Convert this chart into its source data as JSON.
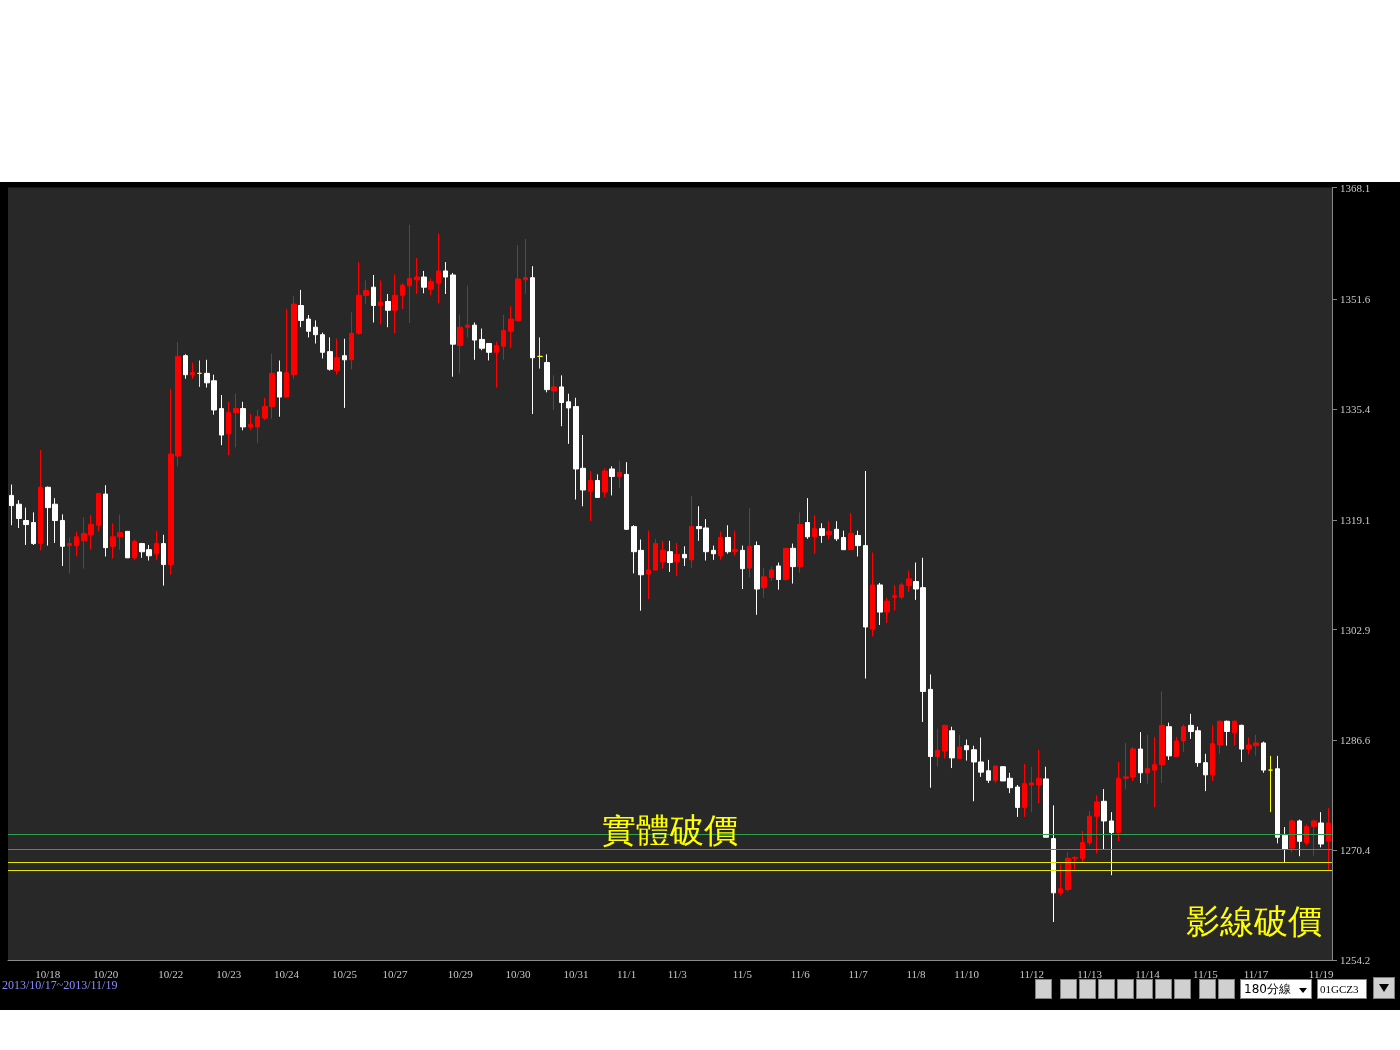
{
  "chart_data": {
    "type": "candlestick",
    "categories": [
      null,
      null,
      null,
      null,
      null,
      "10/18",
      null,
      null,
      null,
      null,
      null,
      null,
      null,
      "10/20",
      null,
      null,
      null,
      null,
      null,
      null,
      null,
      null,
      "10/22",
      null,
      null,
      null,
      null,
      null,
      null,
      null,
      "10/23",
      null,
      null,
      null,
      null,
      null,
      null,
      null,
      "10/24",
      null,
      null,
      null,
      null,
      null,
      null,
      null,
      "10/25",
      null,
      null,
      null,
      null,
      null,
      null,
      "10/27",
      null,
      null,
      null,
      null,
      null,
      null,
      null,
      null,
      "10/29",
      null,
      null,
      null,
      null,
      null,
      null,
      null,
      "10/30",
      null,
      null,
      null,
      null,
      null,
      null,
      null,
      "10/31",
      null,
      null,
      null,
      null,
      null,
      null,
      "11/1",
      null,
      null,
      null,
      null,
      null,
      null,
      "11/3",
      null,
      null,
      null,
      null,
      null,
      null,
      null,
      null,
      "11/5",
      null,
      null,
      null,
      null,
      null,
      null,
      null,
      "11/6",
      null,
      null,
      null,
      null,
      null,
      null,
      null,
      "11/7",
      null,
      null,
      null,
      null,
      null,
      null,
      null,
      "11/8",
      null,
      null,
      null,
      null,
      null,
      null,
      "11/10",
      null,
      null,
      null,
      null,
      null,
      null,
      null,
      null,
      "11/12",
      null,
      null,
      null,
      null,
      null,
      null,
      null,
      "11/13",
      null,
      null,
      null,
      null,
      null,
      null,
      null,
      "11/14",
      null,
      null,
      null,
      null,
      null,
      null,
      null,
      "11/15",
      null,
      null,
      null,
      null,
      null,
      null,
      "11/17",
      null,
      null,
      null,
      null,
      null,
      null,
      null,
      null,
      "11/19",
      null
    ],
    "ohlc": [
      [
        1322.7,
        1324.3,
        1318.3,
        1321.2
      ],
      [
        1321.4,
        1322.0,
        1317.9,
        1319.3
      ],
      [
        1319.0,
        1320.9,
        1315.4,
        1318.4
      ],
      [
        1318.7,
        1320.2,
        1315.4,
        1315.6
      ],
      [
        1315.6,
        1329.4,
        1314.6,
        1323.9
      ],
      [
        1323.9,
        1324.0,
        1315.3,
        1320.9
      ],
      [
        1321.4,
        1322.3,
        1315.7,
        1319.0
      ],
      [
        1319.0,
        1319.9,
        1312.3,
        1315.2
      ],
      [
        1315.3,
        1316.5,
        1311.2,
        1315.6
      ],
      [
        1315.3,
        1317.4,
        1313.7,
        1316.6
      ],
      [
        1316.0,
        1319.5,
        1311.9,
        1317.1
      ],
      [
        1316.9,
        1319.8,
        1314.7,
        1318.4
      ],
      [
        1318.3,
        1323.0,
        1317.4,
        1323.0
      ],
      [
        1322.9,
        1324.2,
        1313.7,
        1315.0
      ],
      [
        1315.2,
        1318.6,
        1313.4,
        1316.6
      ],
      [
        1316.6,
        1319.9,
        1314.7,
        1317.2
      ],
      [
        1317.4,
        1317.4,
        1313.5,
        1313.5
      ],
      [
        1313.5,
        1316.2,
        1313.2,
        1315.9
      ],
      [
        1315.6,
        1315.7,
        1313.5,
        1314.4
      ],
      [
        1314.7,
        1315.4,
        1313.1,
        1313.8
      ],
      [
        1314.1,
        1317.5,
        1313.2,
        1315.6
      ],
      [
        1315.6,
        1316.9,
        1309.4,
        1312.5
      ],
      [
        1312.5,
        1338.4,
        1311.0,
        1328.8
      ],
      [
        1328.5,
        1345.3,
        1327.0,
        1343.2
      ],
      [
        1343.3,
        1343.5,
        1339.9,
        1340.5
      ],
      [
        1340.5,
        1342.3,
        1339.9,
        1340.8
      ],
      [
        1340.7,
        1342.6,
        1338.7,
        1340.7
      ],
      [
        1340.7,
        1342.7,
        1338.6,
        1339.3
      ],
      [
        1339.6,
        1340.5,
        1334.6,
        1335.3
      ],
      [
        1335.5,
        1337.5,
        1330.1,
        1331.6
      ],
      [
        1331.8,
        1336.5,
        1328.6,
        1334.9
      ],
      [
        1334.9,
        1337.7,
        1329.8,
        1335.5
      ],
      [
        1335.5,
        1336.5,
        1332.3,
        1332.8
      ],
      [
        1332.8,
        1334.7,
        1332.3,
        1333.2
      ],
      [
        1332.8,
        1335.3,
        1330.4,
        1334.3
      ],
      [
        1334.1,
        1337.1,
        1333.8,
        1335.8
      ],
      [
        1335.8,
        1343.6,
        1334.0,
        1340.7
      ],
      [
        1340.9,
        1342.6,
        1334.3,
        1337.2
      ],
      [
        1337.2,
        1350.2,
        1337.2,
        1340.8
      ],
      [
        1340.5,
        1352.1,
        1339.9,
        1350.9
      ],
      [
        1350.7,
        1353.0,
        1347.5,
        1348.5
      ],
      [
        1348.7,
        1349.3,
        1346.0,
        1346.9
      ],
      [
        1347.5,
        1348.5,
        1345.1,
        1346.4
      ],
      [
        1346.4,
        1346.7,
        1342.9,
        1343.8
      ],
      [
        1343.9,
        1346.0,
        1341.1,
        1341.3
      ],
      [
        1341.1,
        1345.8,
        1340.5,
        1343.0
      ],
      [
        1343.3,
        1345.8,
        1335.6,
        1342.7
      ],
      [
        1342.7,
        1349.7,
        1341.3,
        1346.6
      ],
      [
        1346.6,
        1357.1,
        1346.4,
        1352.2
      ],
      [
        1352.2,
        1354.4,
        1350.9,
        1352.9
      ],
      [
        1353.4,
        1355.2,
        1348.2,
        1350.7
      ],
      [
        1350.7,
        1354.4,
        1347.9,
        1351.2
      ],
      [
        1351.3,
        1352.4,
        1347.5,
        1350.0
      ],
      [
        1350.0,
        1355.3,
        1346.6,
        1352.2
      ],
      [
        1352.2,
        1354.0,
        1350.2,
        1353.7
      ],
      [
        1353.6,
        1362.6,
        1348.1,
        1354.7
      ],
      [
        1354.5,
        1357.7,
        1352.4,
        1354.9
      ],
      [
        1354.9,
        1355.8,
        1352.5,
        1353.4
      ],
      [
        1353.1,
        1354.7,
        1352.2,
        1354.2
      ],
      [
        1354.0,
        1361.3,
        1351.0,
        1355.8
      ],
      [
        1355.8,
        1357.1,
        1352.4,
        1354.9
      ],
      [
        1355.2,
        1355.5,
        1340.2,
        1345.0
      ],
      [
        1344.8,
        1349.4,
        1340.7,
        1347.5
      ],
      [
        1347.5,
        1353.6,
        1346.0,
        1347.8
      ],
      [
        1347.8,
        1348.2,
        1342.7,
        1345.6
      ],
      [
        1345.7,
        1347.3,
        1344.1,
        1344.4
      ],
      [
        1345.1,
        1345.1,
        1342.6,
        1343.8
      ],
      [
        1343.8,
        1345.4,
        1338.6,
        1344.8
      ],
      [
        1344.7,
        1349.3,
        1342.7,
        1347.0
      ],
      [
        1346.9,
        1350.6,
        1344.4,
        1348.7
      ],
      [
        1348.5,
        1359.6,
        1348.4,
        1354.6
      ],
      [
        1354.5,
        1360.5,
        1352.4,
        1354.8
      ],
      [
        1354.8,
        1356.5,
        1334.7,
        1343.0
      ],
      [
        1343.2,
        1346.0,
        1341.4,
        1343.2
      ],
      [
        1342.3,
        1343.5,
        1337.9,
        1338.3
      ],
      [
        1338.1,
        1340.4,
        1335.3,
        1338.7
      ],
      [
        1338.7,
        1340.4,
        1332.9,
        1336.4
      ],
      [
        1336.5,
        1337.7,
        1330.3,
        1335.6
      ],
      [
        1335.8,
        1337.1,
        1322.1,
        1326.6
      ],
      [
        1326.7,
        1331.6,
        1321.1,
        1323.5
      ],
      [
        1323.3,
        1326.3,
        1318.9,
        1324.9
      ],
      [
        1324.9,
        1325.8,
        1322.4,
        1322.4
      ],
      [
        1323.2,
        1326.7,
        1322.4,
        1326.3
      ],
      [
        1326.6,
        1327.0,
        1322.7,
        1325.5
      ],
      [
        1325.5,
        1327.8,
        1323.8,
        1326.1
      ],
      [
        1325.8,
        1327.6,
        1317.6,
        1317.7
      ],
      [
        1318.1,
        1318.3,
        1311.2,
        1314.4
      ],
      [
        1314.6,
        1316.2,
        1305.7,
        1311.0
      ],
      [
        1311.1,
        1317.5,
        1307.4,
        1311.7
      ],
      [
        1311.7,
        1316.3,
        1311.6,
        1315.6
      ],
      [
        1312.9,
        1316.0,
        1311.9,
        1314.6
      ],
      [
        1314.4,
        1316.0,
        1311.4,
        1312.8
      ],
      [
        1312.9,
        1315.7,
        1310.8,
        1314.0
      ],
      [
        1314.0,
        1315.2,
        1312.3,
        1313.5
      ],
      [
        1313.2,
        1322.6,
        1312.0,
        1318.1
      ],
      [
        1318.1,
        1321.1,
        1316.0,
        1317.8
      ],
      [
        1317.9,
        1319.2,
        1313.1,
        1314.4
      ],
      [
        1314.6,
        1315.3,
        1313.2,
        1314.1
      ],
      [
        1313.8,
        1317.4,
        1313.2,
        1316.5
      ],
      [
        1316.5,
        1318.3,
        1314.1,
        1314.4
      ],
      [
        1314.4,
        1317.5,
        1313.8,
        1314.7
      ],
      [
        1314.6,
        1315.3,
        1308.9,
        1311.9
      ],
      [
        1312.0,
        1320.8,
        1310.6,
        1315.2
      ],
      [
        1315.3,
        1315.9,
        1305.1,
        1308.9
      ],
      [
        1309.1,
        1312.0,
        1307.6,
        1310.7
      ],
      [
        1310.6,
        1312.2,
        1310.1,
        1311.7
      ],
      [
        1312.3,
        1312.8,
        1308.8,
        1310.3
      ],
      [
        1310.3,
        1314.9,
        1310.1,
        1314.9
      ],
      [
        1314.9,
        1315.6,
        1309.7,
        1312.2
      ],
      [
        1312.2,
        1320.2,
        1311.3,
        1318.4
      ],
      [
        1318.7,
        1322.3,
        1316.3,
        1316.6
      ],
      [
        1316.6,
        1319.8,
        1314.1,
        1317.8
      ],
      [
        1317.8,
        1318.6,
        1315.7,
        1316.8
      ],
      [
        1316.9,
        1318.9,
        1316.2,
        1317.4
      ],
      [
        1317.7,
        1318.9,
        1316.0,
        1316.3
      ],
      [
        1316.5,
        1317.5,
        1314.7,
        1314.7
      ],
      [
        1314.7,
        1320.1,
        1314.7,
        1317.1
      ],
      [
        1316.8,
        1317.5,
        1313.7,
        1315.3
      ],
      [
        1315.3,
        1326.3,
        1295.7,
        1303.3
      ],
      [
        1303.0,
        1314.3,
        1301.9,
        1309.5
      ],
      [
        1309.5,
        1309.8,
        1303.6,
        1305.5
      ],
      [
        1305.5,
        1307.6,
        1303.9,
        1307.1
      ],
      [
        1307.7,
        1309.5,
        1305.7,
        1307.9
      ],
      [
        1307.7,
        1309.8,
        1307.4,
        1309.5
      ],
      [
        1309.4,
        1311.6,
        1308.5,
        1310.4
      ],
      [
        1310.0,
        1312.8,
        1307.3,
        1308.9
      ],
      [
        1309.1,
        1313.5,
        1289.3,
        1293.8
      ],
      [
        1294.1,
        1296.3,
        1279.6,
        1284.2
      ],
      [
        1284.2,
        1288.3,
        1282.7,
        1285.1
      ],
      [
        1285.0,
        1288.8,
        1283.9,
        1288.8
      ],
      [
        1288.0,
        1288.6,
        1282.5,
        1284.0
      ],
      [
        1283.9,
        1287.4,
        1283.9,
        1285.6
      ],
      [
        1285.8,
        1286.7,
        1283.6,
        1285.2
      ],
      [
        1285.2,
        1285.8,
        1277.6,
        1283.4
      ],
      [
        1283.4,
        1287.0,
        1281.2,
        1281.9
      ],
      [
        1282.1,
        1283.7,
        1280.3,
        1280.7
      ],
      [
        1280.7,
        1282.8,
        1280.3,
        1282.8
      ],
      [
        1282.7,
        1282.8,
        1280.6,
        1280.6
      ],
      [
        1281.0,
        1281.8,
        1278.8,
        1279.6
      ],
      [
        1279.7,
        1280.0,
        1275.3,
        1276.7
      ],
      [
        1276.7,
        1283.1,
        1275.3,
        1280.2
      ],
      [
        1280.0,
        1282.7,
        1276.0,
        1280.3
      ],
      [
        1280.0,
        1285.2,
        1277.3,
        1281.0
      ],
      [
        1280.9,
        1282.7,
        1272.3,
        1272.3
      ],
      [
        1272.1,
        1277.0,
        1259.8,
        1264.1
      ],
      [
        1264.1,
        1268.3,
        1263.7,
        1264.7
      ],
      [
        1264.6,
        1270.1,
        1264.3,
        1269.2
      ],
      [
        1269.2,
        1269.5,
        1267.5,
        1269.3
      ],
      [
        1269.2,
        1273.2,
        1268.6,
        1271.5
      ],
      [
        1271.5,
        1276.2,
        1271.1,
        1275.4
      ],
      [
        1275.4,
        1278.5,
        1269.9,
        1277.5
      ],
      [
        1277.6,
        1279.4,
        1270.5,
        1274.7
      ],
      [
        1274.7,
        1276.0,
        1266.7,
        1273.0
      ],
      [
        1273.0,
        1283.4,
        1271.7,
        1281.0
      ],
      [
        1281.0,
        1286.2,
        1279.4,
        1281.2
      ],
      [
        1281.2,
        1285.6,
        1280.6,
        1285.3
      ],
      [
        1285.3,
        1287.8,
        1280.3,
        1281.8
      ],
      [
        1281.8,
        1287.4,
        1280.2,
        1282.4
      ],
      [
        1282.2,
        1287.1,
        1276.7,
        1283.0
      ],
      [
        1283.0,
        1293.8,
        1280.3,
        1288.8
      ],
      [
        1288.6,
        1289.2,
        1283.7,
        1284.3
      ],
      [
        1284.2,
        1287.1,
        1284.2,
        1286.5
      ],
      [
        1286.5,
        1288.9,
        1284.9,
        1288.6
      ],
      [
        1288.8,
        1290.5,
        1286.8,
        1287.9
      ],
      [
        1288.0,
        1288.6,
        1282.7,
        1283.3
      ],
      [
        1283.3,
        1284.6,
        1279.1,
        1281.5
      ],
      [
        1281.5,
        1288.8,
        1280.6,
        1286.1
      ],
      [
        1285.9,
        1289.5,
        1284.6,
        1289.4
      ],
      [
        1289.4,
        1289.5,
        1285.8,
        1287.9
      ],
      [
        1287.7,
        1289.5,
        1285.8,
        1289.4
      ],
      [
        1288.8,
        1288.9,
        1283.4,
        1285.3
      ],
      [
        1285.3,
        1287.0,
        1284.5,
        1285.9
      ],
      [
        1285.8,
        1287.4,
        1284.3,
        1286.2
      ],
      [
        1286.2,
        1286.4,
        1281.8,
        1282.2
      ],
      [
        1282.2,
        1284.3,
        1276.0,
        1282.2
      ],
      [
        1282.4,
        1284.3,
        1271.4,
        1272.3
      ],
      [
        1272.6,
        1273.8,
        1268.6,
        1270.5
      ],
      [
        1270.7,
        1274.9,
        1270.1,
        1274.7
      ],
      [
        1274.7,
        1274.9,
        1269.5,
        1271.7
      ],
      [
        1271.5,
        1274.2,
        1271.1,
        1273.9
      ],
      [
        1273.9,
        1274.9,
        1269.5,
        1274.7
      ],
      [
        1274.4,
        1276.0,
        1270.8,
        1271.3
      ],
      [
        1271.7,
        1276.6,
        1267.4,
        1274.4
      ]
    ],
    "colors": [
      "#ffffff",
      "#ffffff",
      "#ffffff",
      "#ffffff",
      "#ff0000",
      "#ffffff",
      "#ffffff",
      "#ffffff",
      "#ff0000",
      "#ff0000",
      "#ff0000",
      "#ff0000",
      "#ff0000",
      "#ffffff",
      "#ff0000",
      "#ff0000",
      "#ffffff",
      "#ff0000",
      "#ffffff",
      "#ffffff",
      "#ff0000",
      "#ffffff",
      "#ff0000",
      "#ff0000",
      "#ffffff",
      "#ff0000",
      "#ffff00",
      "#ffffff",
      "#ffffff",
      "#ffffff",
      "#ff0000",
      "#ff0000",
      "#ffffff",
      "#ff0000",
      "#ff0000",
      "#ff0000",
      "#ff0000",
      "#ffffff",
      "#ff0000",
      "#ff0000",
      "#ffffff",
      "#ffffff",
      "#ffffff",
      "#ffffff",
      "#ffffff",
      "#ff0000",
      "#ffffff",
      "#ff0000",
      "#ff0000",
      "#ff0000",
      "#ffffff",
      "#ff0000",
      "#ffffff",
      "#ff0000",
      "#ff0000",
      "#ff0000",
      "#ff0000",
      "#ffffff",
      "#ff0000",
      "#ff0000",
      "#ffffff",
      "#ffffff",
      "#ff0000",
      "#ff0000",
      "#ffffff",
      "#ffffff",
      "#ffffff",
      "#ff0000",
      "#ff0000",
      "#ff0000",
      "#ff0000",
      "#ff0000",
      "#ffffff",
      "#ffff00",
      "#ffffff",
      "#ff0000",
      "#ffffff",
      "#ffffff",
      "#ffffff",
      "#ffffff",
      "#ff0000",
      "#ffffff",
      "#ff0000",
      "#ffffff",
      "#ff0000",
      "#ffffff",
      "#ffffff",
      "#ffffff",
      "#ff0000",
      "#ff0000",
      "#ff0000",
      "#ffffff",
      "#ff0000",
      "#ffffff",
      "#ff0000",
      "#ffffff",
      "#ffffff",
      "#ffffff",
      "#ff0000",
      "#ffffff",
      "#ff0000",
      "#ffffff",
      "#ff0000",
      "#ffffff",
      "#ff0000",
      "#ff0000",
      "#ffffff",
      "#ff0000",
      "#ffffff",
      "#ff0000",
      "#ffffff",
      "#ff0000",
      "#ffffff",
      "#ff0000",
      "#ffffff",
      "#ffffff",
      "#ff0000",
      "#ffffff",
      "#ffffff",
      "#ff0000",
      "#ffffff",
      "#ff0000",
      "#ff0000",
      "#ff0000",
      "#ff0000",
      "#ffffff",
      "#ffffff",
      "#ffffff",
      "#ff0000",
      "#ff0000",
      "#ffffff",
      "#ff0000",
      "#ffffff",
      "#ffffff",
      "#ffffff",
      "#ffffff",
      "#ff0000",
      "#ffffff",
      "#ffffff",
      "#ffffff",
      "#ff0000",
      "#ff0000",
      "#ff0000",
      "#ffffff",
      "#ffffff",
      "#ff0000",
      "#ff0000",
      "#ff0000",
      "#ff0000",
      "#ff0000",
      "#ff0000",
      "#ffffff",
      "#ffffff",
      "#ff0000",
      "#ff0000",
      "#ff0000",
      "#ffffff",
      "#ff0000",
      "#ff0000",
      "#ff0000",
      "#ffffff",
      "#ff0000",
      "#ff0000",
      "#ffffff",
      "#ffffff",
      "#ffffff",
      "#ff0000",
      "#ff0000",
      "#ffffff",
      "#ff0000",
      "#ffffff",
      "#ff0000",
      "#ff0000",
      "#ffffff",
      "#ffff00",
      "#ffffff",
      "#ffffff",
      "#ff0000",
      "#ffffff",
      "#ff0000",
      "#ff0000",
      "#ffffff",
      "#ff0000"
    ],
    "ylim": [
      1254.2,
      1368.1
    ],
    "yticks": [
      1254.2,
      1270.4,
      1286.6,
      1302.9,
      1319.1,
      1335.4,
      1351.6,
      1368.1
    ],
    "ref_lines": [
      {
        "axis": "y",
        "value": 1272.7,
        "color": "#2e9e4f"
      },
      {
        "axis": "y",
        "value": 1270.5,
        "label": "實體破價",
        "color": "#2e9e4f"
      },
      {
        "axis": "y",
        "value": 1268.6,
        "color": "#e6e600"
      },
      {
        "axis": "y",
        "value": 1267.4,
        "label": "影線破價",
        "color": "#e6e600"
      }
    ],
    "annotations": [
      "2013/10/17~2013/11/19",
      "180分線",
      "01GCZ3"
    ]
  }
}
